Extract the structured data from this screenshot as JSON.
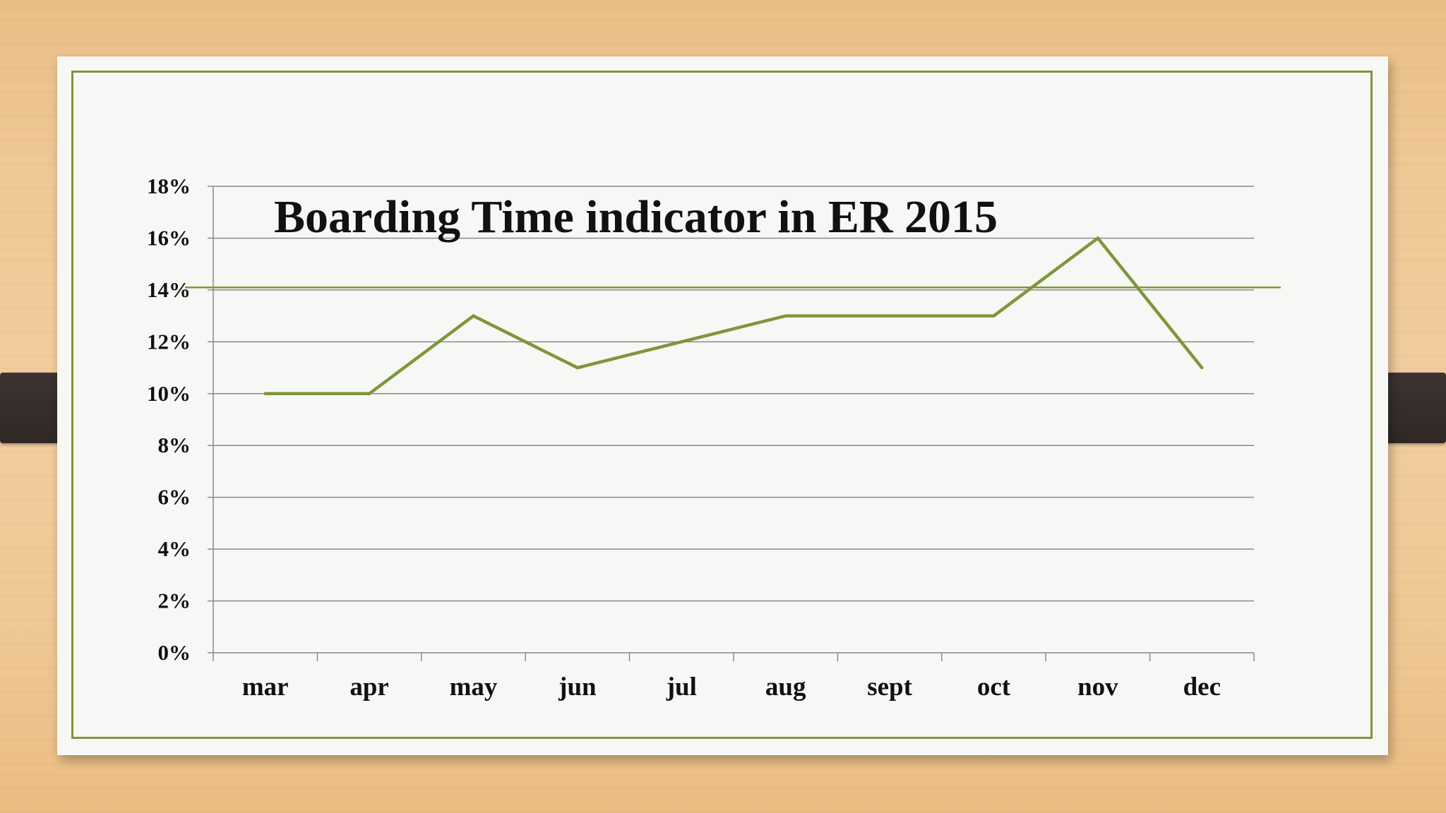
{
  "chart_data": {
    "type": "line",
    "title": "Boarding Time indicator in ER 2015",
    "xlabel": "",
    "ylabel": "",
    "categories": [
      "mar",
      "apr",
      "may",
      "jun",
      "jul",
      "aug",
      "sept",
      "oct",
      "nov",
      "dec"
    ],
    "series": [
      {
        "values": [
          10,
          10,
          13,
          11,
          12,
          13,
          13,
          13,
          16,
          11
        ]
      }
    ],
    "ylim": [
      0,
      18
    ],
    "ytick_values": [
      0,
      2,
      4,
      6,
      8,
      10,
      12,
      14,
      16,
      18
    ],
    "ytick_labels": [
      "0%",
      "2%",
      "4%",
      "6%",
      "8%",
      "10%",
      "12%",
      "14%",
      "16%",
      "18%"
    ],
    "reference_line": 14.1,
    "grid": true,
    "legend": "none",
    "colors": {
      "line": "#7e9639",
      "grid": "#8a8a8a",
      "frame": "#7e9639"
    }
  }
}
